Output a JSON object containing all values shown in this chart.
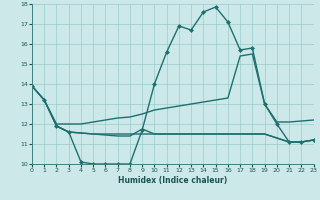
{
  "xlabel": "Humidex (Indice chaleur)",
  "bg_color": "#cce8e8",
  "line_color": "#1e7070",
  "grid_color": "#99cccc",
  "xlim": [
    0,
    23
  ],
  "ylim": [
    10,
    18
  ],
  "yticks": [
    10,
    11,
    12,
    13,
    14,
    15,
    16,
    17,
    18
  ],
  "xticks": [
    0,
    1,
    2,
    3,
    4,
    5,
    6,
    7,
    8,
    9,
    10,
    11,
    12,
    13,
    14,
    15,
    16,
    17,
    18,
    19,
    20,
    21,
    22,
    23
  ],
  "curve1_x": [
    0,
    1,
    2,
    3,
    4,
    5,
    6,
    7,
    8,
    9,
    10,
    11,
    12,
    13,
    14,
    15,
    16,
    17,
    18,
    19,
    20,
    21,
    22,
    23
  ],
  "curve1_y": [
    13.9,
    13.2,
    11.9,
    11.6,
    10.1,
    10.0,
    10.0,
    10.0,
    10.0,
    11.7,
    14.0,
    15.6,
    16.9,
    16.7,
    17.6,
    17.85,
    17.1,
    15.7,
    15.8,
    13.0,
    12.0,
    11.1,
    11.1,
    11.2
  ],
  "curve2_x": [
    0,
    1,
    2,
    3,
    4,
    5,
    6,
    7,
    8,
    9,
    10,
    11,
    12,
    13,
    14,
    15,
    16,
    17,
    18,
    19,
    20,
    21,
    22,
    23
  ],
  "curve2_y": [
    13.9,
    13.2,
    12.0,
    12.0,
    12.0,
    12.1,
    12.2,
    12.3,
    12.35,
    12.5,
    12.7,
    12.8,
    12.9,
    13.0,
    13.1,
    13.2,
    13.3,
    15.4,
    15.5,
    13.0,
    12.1,
    12.1,
    12.15,
    12.2
  ],
  "curve3_x": [
    0,
    1,
    2,
    3,
    4,
    5,
    6,
    7,
    8,
    9,
    10,
    11,
    12,
    13,
    14,
    15,
    16,
    17,
    18,
    19,
    20,
    21,
    22,
    23
  ],
  "curve3_y": [
    13.9,
    13.2,
    11.9,
    11.6,
    11.55,
    11.5,
    11.5,
    11.5,
    11.5,
    11.5,
    11.5,
    11.5,
    11.5,
    11.5,
    11.5,
    11.5,
    11.5,
    11.5,
    11.5,
    11.5,
    11.3,
    11.1,
    11.1,
    11.2
  ],
  "curve4_x": [
    2,
    3,
    4,
    5,
    6,
    7,
    8,
    9,
    10,
    11,
    12,
    13,
    14,
    15,
    16,
    17,
    18,
    19,
    20,
    21,
    22,
    23
  ],
  "curve4_y": [
    11.9,
    11.6,
    11.55,
    11.5,
    11.45,
    11.4,
    11.4,
    11.75,
    11.5,
    11.5,
    11.5,
    11.5,
    11.5,
    11.5,
    11.5,
    11.5,
    11.5,
    11.5,
    11.3,
    11.1,
    11.1,
    11.2
  ]
}
